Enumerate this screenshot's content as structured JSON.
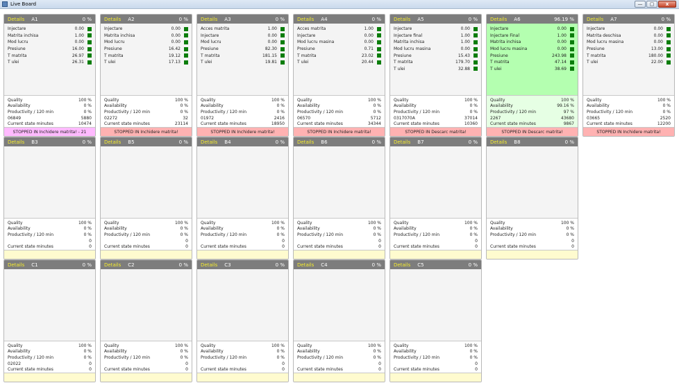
{
  "window": {
    "title": "Live Board",
    "minimize": "—",
    "maximize": "▢",
    "close": "x"
  },
  "details_label": "Details",
  "colors": {
    "header": "#7d7d7d",
    "details_link": "#f5ec2c",
    "ok_params": "#b4ffb0",
    "led": "#0b7d0b",
    "stopped": "#ffb2b2",
    "stopped_alt": "#ffbaff",
    "idle_status": "#fffbcf"
  },
  "cards": [
    {
      "name": "A1",
      "pct": "0 %",
      "theme": "normal",
      "status_style": "magenta",
      "params": [
        [
          "Injectare",
          "0.00"
        ],
        [
          "Matrita inchisa",
          "1.00"
        ],
        [
          "Mod lucru",
          "0.00"
        ],
        [
          "Presiune",
          "16.00"
        ],
        [
          "T matrita",
          "26.97"
        ],
        [
          "T ulei",
          "26.31"
        ]
      ],
      "stats": [
        [
          "Quality",
          "100 %"
        ],
        [
          "Availability",
          "0 %"
        ],
        [
          "Productivity / 120 min",
          "0 %"
        ],
        [
          "06849",
          "5880"
        ],
        [
          "Current state minutes",
          "10474"
        ]
      ],
      "status": "STOPPED IN Inchidere matrita! - 21"
    },
    {
      "name": "A2",
      "pct": "0 %",
      "theme": "normal",
      "status_style": "red",
      "params": [
        [
          "Injectare",
          "0.00"
        ],
        [
          "Matrita inchisa",
          "0.00"
        ],
        [
          "Mod lucru",
          "0.00"
        ],
        [
          "Presiune",
          "16.42"
        ],
        [
          "T matrita",
          "19.12"
        ],
        [
          "T ulei",
          "17.13"
        ]
      ],
      "stats": [
        [
          "Quality",
          "100 %"
        ],
        [
          "Availability",
          "0 %"
        ],
        [
          "Productivity / 120 min",
          "0 %"
        ],
        [
          "02272",
          "32"
        ],
        [
          "Current state minutes",
          "23114"
        ]
      ],
      "status": "STOPPED IN Inchidere matrita!"
    },
    {
      "name": "A3",
      "pct": "0 %",
      "theme": "normal",
      "status_style": "red",
      "params": [
        [
          "Acces matrita",
          "1.00"
        ],
        [
          "Injectare",
          "0.00"
        ],
        [
          "Mod lucru",
          "0.00"
        ],
        [
          "Presiune",
          "82.30"
        ],
        [
          "T matrita",
          "181.15"
        ],
        [
          "T ulei",
          "19.81"
        ]
      ],
      "stats": [
        [
          "Quality",
          "100 %"
        ],
        [
          "Availability",
          "0 %"
        ],
        [
          "Productivity / 120 min",
          "0 %"
        ],
        [
          "01972",
          "2416"
        ],
        [
          "Current state minutes",
          "18950"
        ]
      ],
      "status": "STOPPED IN Inchidere matrita!"
    },
    {
      "name": "A4",
      "pct": "0 %",
      "theme": "normal",
      "status_style": "red",
      "params": [
        [
          "Acces matrita",
          "1.00"
        ],
        [
          "Injectare",
          "0.00"
        ],
        [
          "Mod lucru masina",
          "0.00"
        ],
        [
          "Presiune",
          "0.71"
        ],
        [
          "T matrita",
          "23.02"
        ],
        [
          "T ulei",
          "20.44"
        ]
      ],
      "stats": [
        [
          "Quality",
          "100 %"
        ],
        [
          "Availability",
          "0 %"
        ],
        [
          "Productivity / 120 min",
          "0 %"
        ],
        [
          "06570",
          "5712"
        ],
        [
          "Current state minutes",
          "34344"
        ]
      ],
      "status": "STOPPED IN Inchidere matrita!"
    },
    {
      "name": "A5",
      "pct": "0 %",
      "theme": "normal",
      "status_style": "red",
      "params": [
        [
          "Injectare",
          "0.00"
        ],
        [
          "Injectare final",
          "1.00"
        ],
        [
          "Matrita inchisa",
          "1.00"
        ],
        [
          "Mod lucru masina",
          "0.00"
        ],
        [
          "Presiune",
          "15.43"
        ],
        [
          "T matrita",
          "179.70"
        ],
        [
          "T ulei",
          "32.88"
        ]
      ],
      "stats": [
        [
          "Quality",
          "100 %"
        ],
        [
          "Availability",
          "0 %"
        ],
        [
          "Productivity / 120 min",
          "0 %"
        ],
        [
          "0317070A",
          "37014"
        ],
        [
          "Current state minutes",
          "10360"
        ]
      ],
      "status": "STOPPED IN Descarc matrita!"
    },
    {
      "name": "A6",
      "pct": "96.19 %",
      "theme": "green",
      "status_style": "red",
      "params": [
        [
          "Injectare",
          "0.00"
        ],
        [
          "Injectare Final",
          "1.00"
        ],
        [
          "Matrita inchisa",
          "0.00"
        ],
        [
          "Mod lucru masina",
          "0.00"
        ],
        [
          "Presiune",
          "243.98"
        ],
        [
          "T matrita",
          "47.14"
        ],
        [
          "T ulei",
          "38.69"
        ]
      ],
      "stats": [
        [
          "Quality",
          "100 %"
        ],
        [
          "Availability",
          "99.16 %"
        ],
        [
          "Productivity / 120 min",
          "97 %"
        ],
        [
          "2267",
          "43680"
        ],
        [
          "Current state minutes",
          "9867"
        ]
      ],
      "status": "STOPPED IN Descarc matrita!"
    },
    {
      "name": "A7",
      "pct": "0 %",
      "theme": "normal",
      "status_style": "red",
      "params": [
        [
          "Injectare",
          "0.00"
        ],
        [
          "Matrita deschisa",
          "0.00"
        ],
        [
          "Mod lucru masina",
          "0.00"
        ],
        [
          "Presiune",
          "13.00"
        ],
        [
          "T matrita",
          "180.00"
        ],
        [
          "T ulei",
          "22.00"
        ]
      ],
      "stats": [
        [
          "Quality",
          "100 %"
        ],
        [
          "Availability",
          "0 %"
        ],
        [
          "Productivity / 120 min",
          "0 %"
        ],
        [
          "03665",
          "2520"
        ],
        [
          "Current state minutes",
          "12200"
        ]
      ],
      "status": "STOPPED IN Inchidere matrita!"
    },
    {
      "name": "B3",
      "pct": "0 %",
      "theme": "normal",
      "status_style": "empty",
      "params": [],
      "stats": [
        [
          "Quality",
          "100 %"
        ],
        [
          "Availability",
          "0 %"
        ],
        [
          "Productivity / 120 min",
          "0 %"
        ],
        [
          "",
          "0"
        ],
        [
          "Current state minutes",
          "0"
        ]
      ],
      "status": ""
    },
    {
      "name": "B5",
      "pct": "0 %",
      "theme": "normal",
      "status_style": "empty",
      "params": [],
      "stats": [
        [
          "Quality",
          "100 %"
        ],
        [
          "Availability",
          "0 %"
        ],
        [
          "Productivity / 120 min",
          "0 %"
        ],
        [
          "",
          "0"
        ],
        [
          "Current state minutes",
          "0"
        ]
      ],
      "status": ""
    },
    {
      "name": "B4",
      "pct": "0 %",
      "theme": "normal",
      "status_style": "empty",
      "params": [],
      "stats": [
        [
          "Quality",
          "100 %"
        ],
        [
          "Availability",
          "0 %"
        ],
        [
          "Productivity / 120 min",
          "0 %"
        ],
        [
          "",
          "0"
        ],
        [
          "Current state minutes",
          "0"
        ]
      ],
      "status": ""
    },
    {
      "name": "B6",
      "pct": "0 %",
      "theme": "normal",
      "status_style": "empty",
      "params": [],
      "stats": [
        [
          "Quality",
          "100 %"
        ],
        [
          "Availability",
          "0 %"
        ],
        [
          "Productivity / 120 min",
          "0 %"
        ],
        [
          "",
          "0"
        ],
        [
          "Current state minutes",
          "0"
        ]
      ],
      "status": ""
    },
    {
      "name": "B7",
      "pct": "0 %",
      "theme": "normal",
      "status_style": "empty",
      "params": [],
      "stats": [
        [
          "Quality",
          "100 %"
        ],
        [
          "Availability",
          "0 %"
        ],
        [
          "Productivity / 120 min",
          "0 %"
        ],
        [
          "",
          "0"
        ],
        [
          "Current state minutes",
          "0"
        ]
      ],
      "status": ""
    },
    {
      "name": "B8",
      "pct": "0 %",
      "theme": "normal",
      "status_style": "empty",
      "params": [],
      "stats": [
        [
          "Quality",
          "100 %"
        ],
        [
          "Availability",
          "0 %"
        ],
        [
          "Productivity / 120 min",
          "0 %"
        ],
        [
          "",
          "0"
        ],
        [
          "Current state minutes",
          "0"
        ]
      ],
      "status": ""
    },
    {
      "name": "C1",
      "pct": "0 %",
      "theme": "normal",
      "status_style": "empty",
      "params": [],
      "stats": [
        [
          "Quality",
          "100 %"
        ],
        [
          "Availability",
          "0 %"
        ],
        [
          "Productivity / 120 min",
          "0 %"
        ],
        [
          "02022",
          "0"
        ],
        [
          "Current state minutes",
          "0"
        ]
      ],
      "status": ""
    },
    {
      "name": "C2",
      "pct": "0 %",
      "theme": "normal",
      "status_style": "empty",
      "params": [],
      "stats": [
        [
          "Quality",
          "100 %"
        ],
        [
          "Availability",
          "0 %"
        ],
        [
          "Productivity / 120 min",
          "0 %"
        ],
        [
          "",
          "0"
        ],
        [
          "Current state minutes",
          "0"
        ]
      ],
      "status": ""
    },
    {
      "name": "C3",
      "pct": "0 %",
      "theme": "normal",
      "status_style": "empty",
      "params": [],
      "stats": [
        [
          "Quality",
          "100 %"
        ],
        [
          "Availability",
          "0 %"
        ],
        [
          "Productivity / 120 min",
          "0 %"
        ],
        [
          "",
          "0"
        ],
        [
          "Current state minutes",
          "0"
        ]
      ],
      "status": ""
    },
    {
      "name": "C4",
      "pct": "0 %",
      "theme": "normal",
      "status_style": "empty",
      "params": [],
      "stats": [
        [
          "Quality",
          "100 %"
        ],
        [
          "Availability",
          "0 %"
        ],
        [
          "Productivity / 120 min",
          "0 %"
        ],
        [
          "",
          "0"
        ],
        [
          "Current state minutes",
          "0"
        ]
      ],
      "status": ""
    },
    {
      "name": "C5",
      "pct": "0 %",
      "theme": "normal",
      "status_style": "empty",
      "params": [],
      "stats": [
        [
          "Quality",
          "100 %"
        ],
        [
          "Availability",
          "0 %"
        ],
        [
          "Productivity / 120 min",
          "0 %"
        ],
        [
          "",
          "0"
        ],
        [
          "Current state minutes",
          "0"
        ]
      ],
      "status": ""
    }
  ]
}
